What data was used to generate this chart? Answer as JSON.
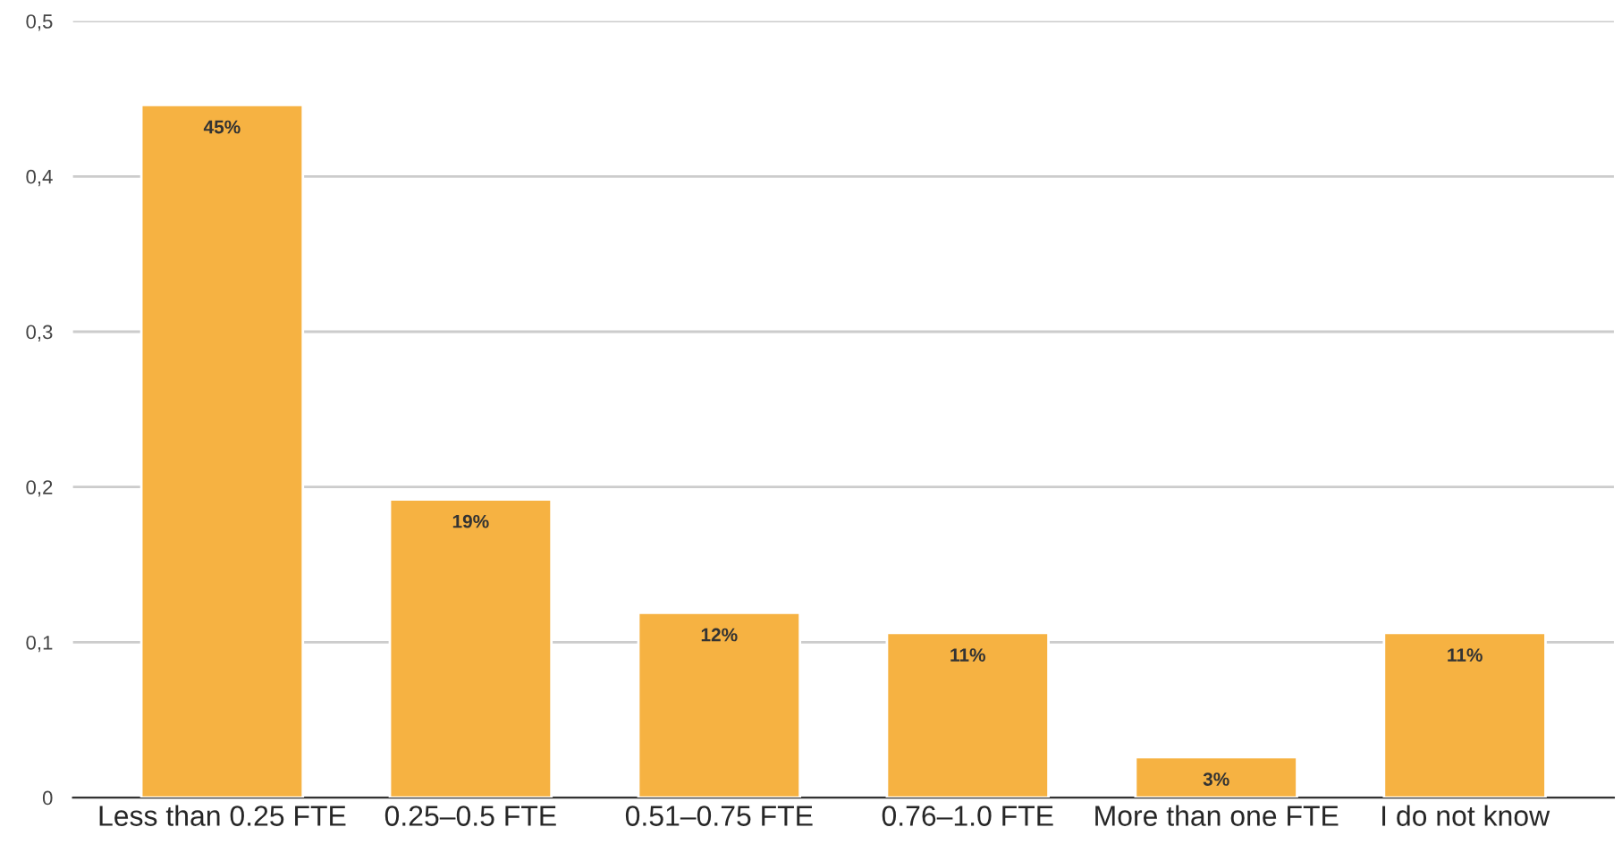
{
  "chart_data": {
    "type": "bar",
    "categories": [
      "Less than 0.25 FTE",
      "0.25–0.5 FTE",
      "0.51–0.75 FTE",
      "0.76–1.0 FTE",
      "More than one FTE",
      "I do not know"
    ],
    "values": [
      0.446,
      0.192,
      0.119,
      0.106,
      0.026,
      0.106
    ],
    "value_labels": [
      "45%",
      "19%",
      "12%",
      "11%",
      "3%",
      "11%"
    ],
    "color": "#f6b242",
    "ylim": [
      0,
      0.5
    ],
    "yticks": [
      {
        "value": 0,
        "label": "0"
      },
      {
        "value": 0.1,
        "label": "0,1"
      },
      {
        "value": 0.2,
        "label": "0,2"
      },
      {
        "value": 0.3,
        "label": "0,3"
      },
      {
        "value": 0.4,
        "label": "0,4"
      },
      {
        "value": 0.5,
        "label": "0,5"
      }
    ],
    "grid": "y",
    "legend": false
  }
}
